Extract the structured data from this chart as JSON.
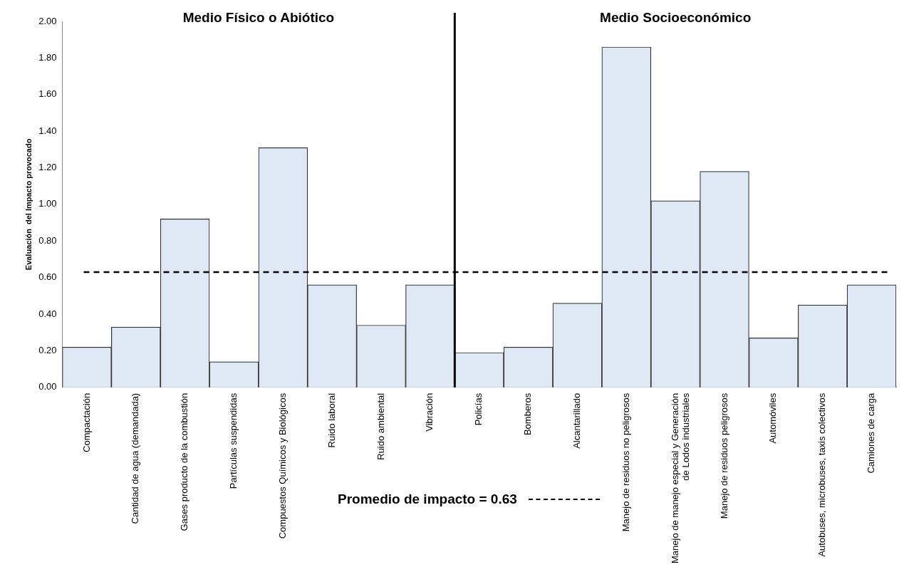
{
  "chart_data": {
    "type": "bar",
    "ylabel": "Evaluación  del Impacto provocado",
    "categories": [
      "Compactación",
      "Cantidad de agua (demandada)",
      "Gases producto de la combustión",
      "Partículas suspendidas",
      "Compuestos Químicos y Biológicos",
      "Ruido laboral",
      "Ruido ambiental",
      "Vibración",
      "Policías",
      "Bomberos",
      "Alcantarillado",
      "Manejo de residuos no peligrosos",
      "Manejo de manejo especial y Generación de Lodos industriales",
      "Manejo de residuos peligrosos",
      "Automóviles",
      "Autobuses, microbuses, taxis colectivos",
      "Camiones de carga"
    ],
    "values": [
      0.22,
      0.33,
      0.92,
      0.14,
      1.31,
      0.56,
      0.34,
      0.56,
      0.19,
      0.22,
      0.46,
      1.86,
      1.02,
      1.18,
      0.27,
      0.45,
      0.56
    ],
    "color": "#dfe8f5",
    "ylim": [
      0,
      2
    ],
    "yticks": [
      {
        "value": 0,
        "label": "0.00"
      },
      {
        "value": 0.2,
        "label": "0.20"
      },
      {
        "value": 0.4,
        "label": "0.40"
      },
      {
        "value": 0.6,
        "label": "0.60"
      },
      {
        "value": 0.8,
        "label": "0.80"
      },
      {
        "value": 1,
        "label": "1.00"
      },
      {
        "value": 1.2,
        "label": "1.20"
      },
      {
        "value": 1.4,
        "label": "1.40"
      },
      {
        "value": 1.6,
        "label": "1.60"
      },
      {
        "value": 1.8,
        "label": "1.80"
      },
      {
        "value": 2,
        "label": "2.00"
      }
    ],
    "grid": false,
    "ref_lines": [
      {
        "axis": "y",
        "value": 0.63,
        "label": "Promedio de impacto = 0.63",
        "line_style": "dashed",
        "color": "#000000"
      }
    ],
    "annotations": [
      "Medio Físico o Abiótico",
      "Medio Socioeconómico"
    ]
  }
}
